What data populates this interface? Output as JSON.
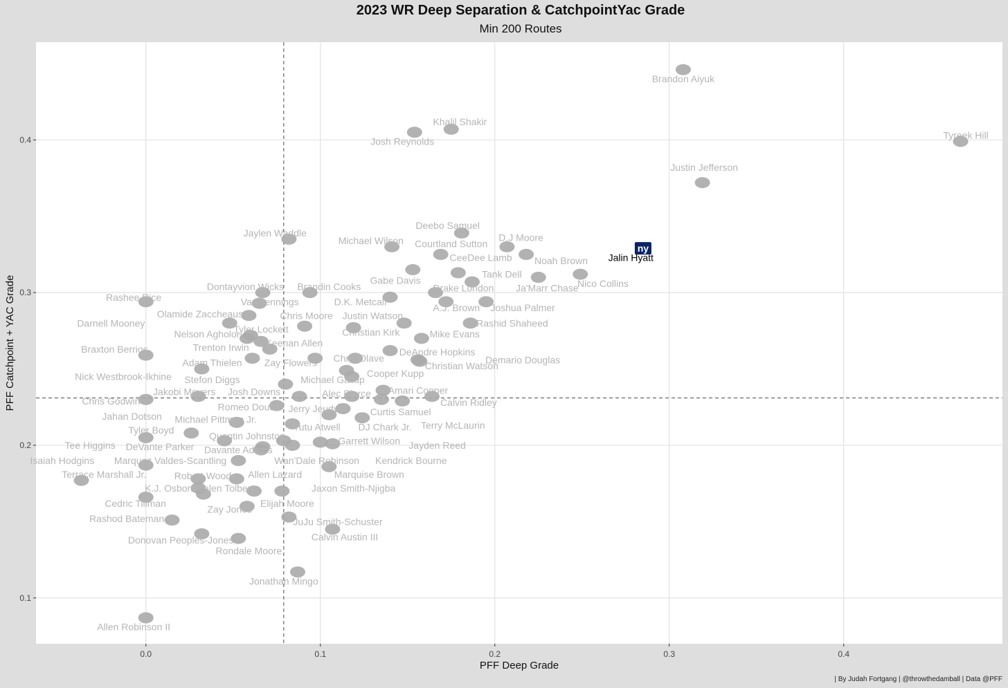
{
  "chart_data": {
    "type": "scatter",
    "title": "2023 WR Deep Separation & CatchpointYac Grade",
    "subtitle": "Min 200 Routes",
    "xlabel": "PFF Deep Grade",
    "ylabel": "PFF Catchpoint + YAC Grade",
    "xlim": [
      -0.063,
      0.491
    ],
    "ylim": [
      0.07,
      0.464
    ],
    "xticks": [
      0.0,
      0.1,
      0.2,
      0.3,
      0.4
    ],
    "yticks": [
      0.1,
      0.2,
      0.3,
      0.4
    ],
    "xtick_labels": [
      "0.0",
      "0.1",
      "0.2",
      "0.3",
      "0.4"
    ],
    "ytick_labels": [
      "0.1",
      "0.2",
      "0.3",
      "0.4"
    ],
    "ref_lines": {
      "x": 0.079,
      "y": 0.231
    },
    "grid": true,
    "highlight_color": "#0b2265",
    "point_color": "#aaaaaa",
    "label_color": "#b5b5b5",
    "highlight_icon": "ny-giants-logo",
    "points": [
      {
        "name": "Brandon Aiyuk",
        "x": 0.308,
        "y": 0.446
      },
      {
        "name": "Tyreek Hill",
        "x": 0.467,
        "y": 0.399
      },
      {
        "name": "Justin Jefferson",
        "x": 0.319,
        "y": 0.372
      },
      {
        "name": "Khalil Shakir",
        "x": 0.175,
        "y": 0.407
      },
      {
        "name": "Josh Reynolds",
        "x": 0.154,
        "y": 0.405
      },
      {
        "name": "Jalin Hyatt",
        "x": 0.285,
        "y": 0.329,
        "highlight": true
      },
      {
        "name": "Deebo Samuel",
        "x": 0.181,
        "y": 0.339
      },
      {
        "name": "D.J Moore",
        "x": 0.207,
        "y": 0.33
      },
      {
        "name": "Noah Brown",
        "x": 0.218,
        "y": 0.325
      },
      {
        "name": "Courtland Sutton",
        "x": 0.169,
        "y": 0.325
      },
      {
        "name": "CeeDee Lamb",
        "x": 0.179,
        "y": 0.313
      },
      {
        "name": "Jaylen Waddle",
        "x": 0.082,
        "y": 0.335
      },
      {
        "name": "Michael Wilson",
        "x": 0.141,
        "y": 0.33
      },
      {
        "name": "Tank Dell",
        "x": 0.187,
        "y": 0.307
      },
      {
        "name": "Nico Collins",
        "x": 0.249,
        "y": 0.312
      },
      {
        "name": "Ja'Marr Chase",
        "x": 0.225,
        "y": 0.31
      },
      {
        "name": "Gabe Davis",
        "x": 0.153,
        "y": 0.315
      },
      {
        "name": "Drake London",
        "x": 0.166,
        "y": 0.3
      },
      {
        "name": "Brandin Cooks",
        "x": 0.094,
        "y": 0.3
      },
      {
        "name": "Dontayvion Wicks",
        "x": 0.067,
        "y": 0.3
      },
      {
        "name": "D.K. Metcalf",
        "x": 0.14,
        "y": 0.297
      },
      {
        "name": "A.J. Brown",
        "x": 0.172,
        "y": 0.294
      },
      {
        "name": "Joshua Palmer",
        "x": 0.195,
        "y": 0.294
      },
      {
        "name": "Van Jennings",
        "x": 0.065,
        "y": 0.293
      },
      {
        "name": "Rashee Rice",
        "x": 0.0,
        "y": 0.294
      },
      {
        "name": "Olamide Zaccheaus",
        "x": 0.059,
        "y": 0.285
      },
      {
        "name": "Darnell Mooney",
        "x": 0.048,
        "y": 0.28
      },
      {
        "name": "Chris Moore",
        "x": 0.091,
        "y": 0.278
      },
      {
        "name": "Justin Watson",
        "x": 0.148,
        "y": 0.28
      },
      {
        "name": "Rashid Shaheed",
        "x": 0.186,
        "y": 0.28
      },
      {
        "name": "Tyler Lockett",
        "x": 0.06,
        "y": 0.272
      },
      {
        "name": "Nelson Agholor",
        "x": 0.058,
        "y": 0.27
      },
      {
        "name": "Christian Kirk",
        "x": 0.119,
        "y": 0.277
      },
      {
        "name": "Keenan Allen",
        "x": 0.066,
        "y": 0.268
      },
      {
        "name": "Mike Evans",
        "x": 0.158,
        "y": 0.27
      },
      {
        "name": "Trenton Irwin",
        "x": 0.071,
        "y": 0.263
      },
      {
        "name": "Braxton Berrios",
        "x": 0.0,
        "y": 0.259
      },
      {
        "name": "DeAndre Hopkins",
        "x": 0.14,
        "y": 0.262
      },
      {
        "name": "Demario Douglas",
        "x": 0.157,
        "y": 0.255
      },
      {
        "name": "Adam Thielen",
        "x": 0.061,
        "y": 0.257
      },
      {
        "name": "Zay Flowers",
        "x": 0.097,
        "y": 0.257
      },
      {
        "name": "Chris Olave",
        "x": 0.12,
        "y": 0.257
      },
      {
        "name": "Christian Watson",
        "x": 0.156,
        "y": 0.256
      },
      {
        "name": "Nick Westbrook-Ikhine",
        "x": 0.032,
        "y": 0.25
      },
      {
        "name": "Cooper Kupp",
        "x": 0.115,
        "y": 0.249
      },
      {
        "name": "Stefon Diggs",
        "x": 0.08,
        "y": 0.24
      },
      {
        "name": "Michael Gallup",
        "x": 0.118,
        "y": 0.245
      },
      {
        "name": "Amari Cooper",
        "x": 0.136,
        "y": 0.236
      },
      {
        "name": "Jakobi Meyers",
        "x": 0.03,
        "y": 0.232
      },
      {
        "name": "Josh Downs",
        "x": 0.088,
        "y": 0.232
      },
      {
        "name": "Alec Pierce",
        "x": 0.118,
        "y": 0.232
      },
      {
        "name": "Chris Godwin",
        "x": 0.0,
        "y": 0.23
      },
      {
        "name": "Calvin Ridley",
        "x": 0.164,
        "y": 0.232
      },
      {
        "name": "Romeo Doubs",
        "x": 0.075,
        "y": 0.226
      },
      {
        "name": "Jerry Jeudy",
        "x": 0.113,
        "y": 0.224
      },
      {
        "name": "Curtis Samuel",
        "x": 0.135,
        "y": 0.23
      },
      {
        "name": "Jahan Dotson",
        "x": 0.052,
        "y": 0.215
      },
      {
        "name": "Michael Pittman Jr.",
        "x": 0.084,
        "y": 0.214
      },
      {
        "name": "Terry McLaurin",
        "x": 0.147,
        "y": 0.229
      },
      {
        "name": "Tutu Atwell",
        "x": 0.105,
        "y": 0.22
      },
      {
        "name": "DJ Chark Jr.",
        "x": 0.124,
        "y": 0.218
      },
      {
        "name": "Tyler Boyd",
        "x": 0.026,
        "y": 0.208
      },
      {
        "name": "Quentin Johnston",
        "x": 0.079,
        "y": 0.203
      },
      {
        "name": "Garrett Wilson",
        "x": 0.107,
        "y": 0.201
      },
      {
        "name": "Jayden Reed",
        "x": 0.1,
        "y": 0.202
      },
      {
        "name": "Tee Higgins",
        "x": 0.0,
        "y": 0.205
      },
      {
        "name": "DeVante Parker",
        "x": 0.045,
        "y": 0.203
      },
      {
        "name": "Davante Adams",
        "x": 0.066,
        "y": 0.197
      },
      {
        "name": "Wan'Dale Robinson",
        "x": 0.067,
        "y": 0.199
      },
      {
        "name": "Kendrick Bourne",
        "x": 0.084,
        "y": 0.2
      },
      {
        "name": "Isaiah Hodgins",
        "x": 0.0,
        "y": 0.187
      },
      {
        "name": "Marquez Valdes-Scantling",
        "x": 0.053,
        "y": 0.19
      },
      {
        "name": "Marquise Brown",
        "x": 0.105,
        "y": 0.186
      },
      {
        "name": "Terrace Marshall Jr.",
        "x": -0.037,
        "y": 0.177
      },
      {
        "name": "Robert Woods",
        "x": 0.03,
        "y": 0.178
      },
      {
        "name": "Allen Lazard",
        "x": 0.052,
        "y": 0.178
      },
      {
        "name": "K.J. Osborn",
        "x": 0.03,
        "y": 0.172
      },
      {
        "name": "Jalen Tolbert",
        "x": 0.033,
        "y": 0.168
      },
      {
        "name": "Jaxon Smith-Njigba",
        "x": 0.078,
        "y": 0.17
      },
      {
        "name": "Elijah Moore",
        "x": 0.062,
        "y": 0.17
      },
      {
        "name": "Cedric Tillman",
        "x": 0.0,
        "y": 0.166
      },
      {
        "name": "Zay Jones",
        "x": 0.058,
        "y": 0.16
      },
      {
        "name": "Rashod Bateman",
        "x": 0.015,
        "y": 0.151
      },
      {
        "name": "JuJu Smith-Schuster",
        "x": 0.082,
        "y": 0.153
      },
      {
        "name": "Calvin Austin III",
        "x": 0.107,
        "y": 0.145
      },
      {
        "name": "Donovan Peoples-Jones",
        "x": 0.032,
        "y": 0.142
      },
      {
        "name": "Rondale Moore",
        "x": 0.053,
        "y": 0.139
      },
      {
        "name": "Jonathan Mingo",
        "x": 0.087,
        "y": 0.117
      },
      {
        "name": "Allen Robinson II",
        "x": 0.0,
        "y": 0.087
      }
    ],
    "labels": [
      {
        "text": "Brandon Aiyuk",
        "x": 0.308,
        "y": 0.44
      },
      {
        "text": "Tyreek Hill",
        "x": 0.47,
        "y": 0.403
      },
      {
        "text": "Justin Jefferson",
        "x": 0.32,
        "y": 0.382
      },
      {
        "text": "Khalil Shakir",
        "x": 0.18,
        "y": 0.412
      },
      {
        "text": "Josh Reynolds",
        "x": 0.147,
        "y": 0.399
      },
      {
        "text": "Jalin Hyatt",
        "x": 0.278,
        "y": 0.323,
        "highlight": true
      },
      {
        "text": "Deebo Samuel",
        "x": 0.173,
        "y": 0.344
      },
      {
        "text": "D.J Moore",
        "x": 0.215,
        "y": 0.336
      },
      {
        "text": "Courtland Sutton",
        "x": 0.175,
        "y": 0.332
      },
      {
        "text": "Michael Wilson",
        "x": 0.129,
        "y": 0.334
      },
      {
        "text": "Jaylen Waddle",
        "x": 0.074,
        "y": 0.339
      },
      {
        "text": "CeeDee Lamb",
        "x": 0.192,
        "y": 0.323
      },
      {
        "text": "Noah Brown",
        "x": 0.238,
        "y": 0.321
      },
      {
        "text": "Tank Dell",
        "x": 0.204,
        "y": 0.312
      },
      {
        "text": "Gabe Davis",
        "x": 0.143,
        "y": 0.308
      },
      {
        "text": "Nico Collins",
        "x": 0.262,
        "y": 0.306
      },
      {
        "text": "Dontayvion Wicks",
        "x": 0.057,
        "y": 0.304
      },
      {
        "text": "Brandin Cooks",
        "x": 0.105,
        "y": 0.304
      },
      {
        "text": "Drake London",
        "x": 0.182,
        "y": 0.303
      },
      {
        "text": "Ja'Marr Chase",
        "x": 0.23,
        "y": 0.303
      },
      {
        "text": "Rashee Rice",
        "x": -0.007,
        "y": 0.297
      },
      {
        "text": "Van Jennings",
        "x": 0.071,
        "y": 0.294
      },
      {
        "text": "D.K. Metcalf",
        "x": 0.123,
        "y": 0.294
      },
      {
        "text": "A.J. Brown",
        "x": 0.178,
        "y": 0.29
      },
      {
        "text": "Joshua Palmer",
        "x": 0.216,
        "y": 0.29
      },
      {
        "text": "Olamide Zaccheaus",
        "x": 0.031,
        "y": 0.286
      },
      {
        "text": "Chris Moore",
        "x": 0.092,
        "y": 0.285
      },
      {
        "text": "Justin Watson",
        "x": 0.13,
        "y": 0.285
      },
      {
        "text": "Darnell Mooney",
        "x": -0.02,
        "y": 0.28
      },
      {
        "text": "Rashid Shaheed",
        "x": 0.21,
        "y": 0.28
      },
      {
        "text": "Tyler Lockett",
        "x": 0.066,
        "y": 0.276
      },
      {
        "text": "Nelson Agholor",
        "x": 0.035,
        "y": 0.273
      },
      {
        "text": "Christian Kirk",
        "x": 0.129,
        "y": 0.274
      },
      {
        "text": "Mike Evans",
        "x": 0.177,
        "y": 0.273
      },
      {
        "text": "Keenan Allen",
        "x": 0.085,
        "y": 0.267
      },
      {
        "text": "Trenton Irwin",
        "x": 0.043,
        "y": 0.264
      },
      {
        "text": "Braxton Berrios",
        "x": -0.018,
        "y": 0.263
      },
      {
        "text": "DeAndre Hopkins",
        "x": 0.167,
        "y": 0.261
      },
      {
        "text": "Demario Douglas",
        "x": 0.216,
        "y": 0.256
      },
      {
        "text": "Adam Thielen",
        "x": 0.038,
        "y": 0.254
      },
      {
        "text": "Zay Flowers",
        "x": 0.083,
        "y": 0.254
      },
      {
        "text": "Chris Olave",
        "x": 0.122,
        "y": 0.257
      },
      {
        "text": "Christian Watson",
        "x": 0.181,
        "y": 0.252
      },
      {
        "text": "Nick Westbrook-Ikhine",
        "x": -0.013,
        "y": 0.245
      },
      {
        "text": "Michael Gallup",
        "x": 0.107,
        "y": 0.243
      },
      {
        "text": "Cooper Kupp",
        "x": 0.143,
        "y": 0.247
      },
      {
        "text": "Stefon Diggs",
        "x": 0.038,
        "y": 0.243
      },
      {
        "text": "Amari Cooper",
        "x": 0.156,
        "y": 0.236
      },
      {
        "text": "Jakobi Meyers",
        "x": 0.022,
        "y": 0.235
      },
      {
        "text": "Josh Downs",
        "x": 0.062,
        "y": 0.235
      },
      {
        "text": "Alec Pierce",
        "x": 0.115,
        "y": 0.234
      },
      {
        "text": "Chris Godwin",
        "x": -0.02,
        "y": 0.229
      },
      {
        "text": "Calvin Ridley",
        "x": 0.185,
        "y": 0.228
      },
      {
        "text": "Romeo Doubs",
        "x": 0.059,
        "y": 0.225
      },
      {
        "text": "Jerry Jeudy",
        "x": 0.096,
        "y": 0.224
      },
      {
        "text": "Curtis Samuel",
        "x": 0.146,
        "y": 0.222
      },
      {
        "text": "Jahan Dotson",
        "x": -0.008,
        "y": 0.219
      },
      {
        "text": "Michael Pittman Jr.",
        "x": 0.04,
        "y": 0.217
      },
      {
        "text": "Terry McLaurin",
        "x": 0.176,
        "y": 0.213
      },
      {
        "text": "Tutu Atwell",
        "x": 0.098,
        "y": 0.212
      },
      {
        "text": "DJ Chark Jr.",
        "x": 0.137,
        "y": 0.212
      },
      {
        "text": "Tyler Boyd",
        "x": 0.003,
        "y": 0.21
      },
      {
        "text": "Quentin Johnston",
        "x": 0.058,
        "y": 0.206
      },
      {
        "text": "Garrett Wilson",
        "x": 0.128,
        "y": 0.203
      },
      {
        "text": "Jayden Reed",
        "x": 0.167,
        "y": 0.2
      },
      {
        "text": "Tee Higgins",
        "x": -0.032,
        "y": 0.2
      },
      {
        "text": "DeVante Parker",
        "x": 0.008,
        "y": 0.199
      },
      {
        "text": "Davante Adams",
        "x": 0.053,
        "y": 0.197
      },
      {
        "text": "Isaiah Hodgins",
        "x": -0.048,
        "y": 0.19
      },
      {
        "text": "Marquez Valdes-Scantling",
        "x": 0.014,
        "y": 0.19
      },
      {
        "text": "Wan'Dale Robinson",
        "x": 0.098,
        "y": 0.19
      },
      {
        "text": "Kendrick Bourne",
        "x": 0.152,
        "y": 0.19
      },
      {
        "text": "Terrace Marshall Jr.",
        "x": -0.024,
        "y": 0.181
      },
      {
        "text": "Robert Woods",
        "x": 0.034,
        "y": 0.18
      },
      {
        "text": "Allen Lazard",
        "x": 0.074,
        "y": 0.181
      },
      {
        "text": "Marquise Brown",
        "x": 0.128,
        "y": 0.181
      },
      {
        "text": "K.J. Osborn",
        "x": 0.014,
        "y": 0.172
      },
      {
        "text": "Jalen Tolbert",
        "x": 0.046,
        "y": 0.172
      },
      {
        "text": "Jaxon Smith-Njigba",
        "x": 0.119,
        "y": 0.172
      },
      {
        "text": "Elijah Moore",
        "x": 0.081,
        "y": 0.162
      },
      {
        "text": "Cedric Tillman",
        "x": -0.006,
        "y": 0.162
      },
      {
        "text": "Zay Jones",
        "x": 0.048,
        "y": 0.158
      },
      {
        "text": "Rashod Bateman",
        "x": -0.011,
        "y": 0.152
      },
      {
        "text": "JuJu Smith-Schuster",
        "x": 0.11,
        "y": 0.15
      },
      {
        "text": "Calvin Austin III",
        "x": 0.114,
        "y": 0.14
      },
      {
        "text": "Donovan Peoples-Jones",
        "x": 0.02,
        "y": 0.138
      },
      {
        "text": "Rondale Moore",
        "x": 0.059,
        "y": 0.131
      },
      {
        "text": "Jonathan Mingo",
        "x": 0.079,
        "y": 0.111
      },
      {
        "text": "Allen Robinson II",
        "x": -0.007,
        "y": 0.081
      }
    ],
    "caption": "| By Judah Fortgang | @throwthedamball | Data @PFF"
  }
}
